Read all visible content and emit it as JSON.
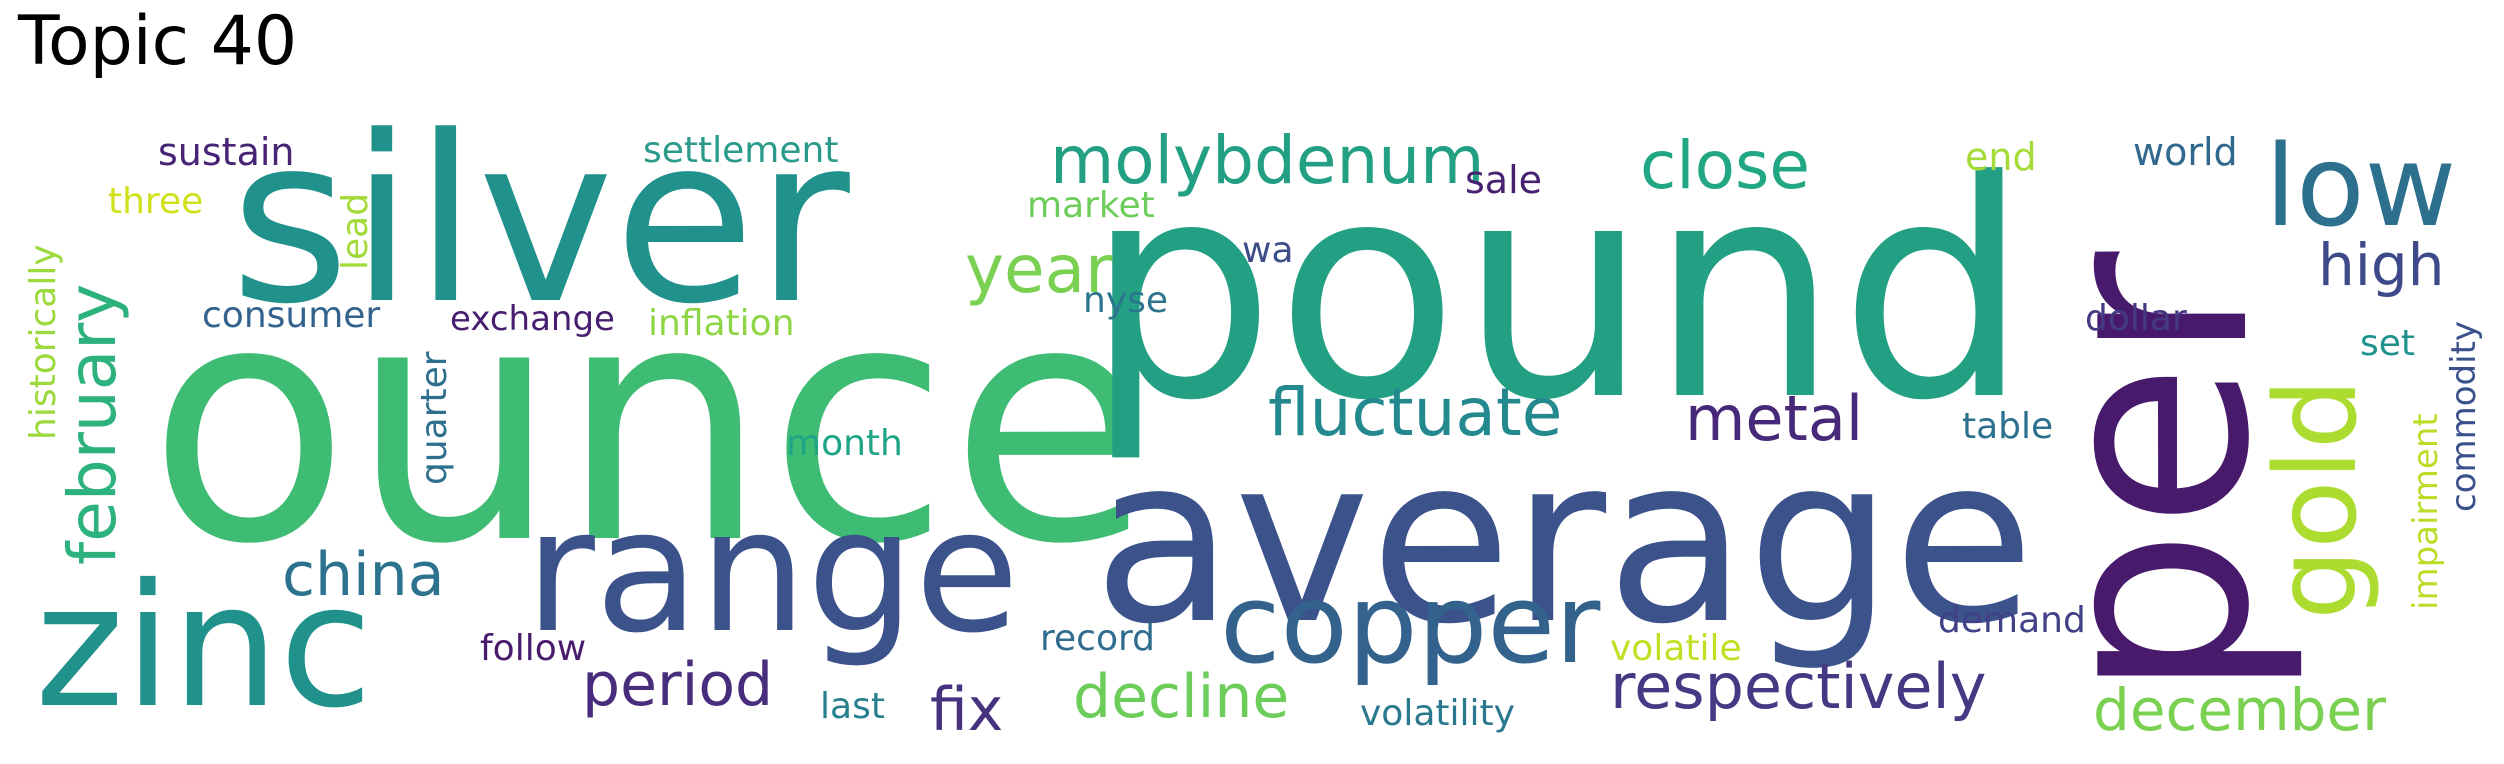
{
  "title": "Topic 40",
  "words": [
    {
      "text": "ounce",
      "color": "#3fbc73"
    },
    {
      "text": "pound",
      "color": "#23a083"
    },
    {
      "text": "per",
      "color": "#481a6c"
    },
    {
      "text": "average",
      "color": "#3b528b"
    },
    {
      "text": "silver",
      "color": "#21918c"
    },
    {
      "text": "range",
      "color": "#3b528b"
    },
    {
      "text": "zinc",
      "color": "#21918c"
    },
    {
      "text": "copper",
      "color": "#33638d"
    },
    {
      "text": "low",
      "color": "#2d708e"
    },
    {
      "text": "gold",
      "color": "#addc30"
    },
    {
      "text": "molybdenum",
      "color": "#23a083"
    },
    {
      "text": "close",
      "color": "#22a785"
    },
    {
      "text": "year",
      "color": "#7ad151"
    },
    {
      "text": "fluctuate",
      "color": "#23898e"
    },
    {
      "text": "metal",
      "color": "#482878"
    },
    {
      "text": "high",
      "color": "#3e4989"
    },
    {
      "text": "february",
      "color": "#2db27d"
    },
    {
      "text": "china",
      "color": "#2c728e"
    },
    {
      "text": "respectively",
      "color": "#443983"
    },
    {
      "text": "period",
      "color": "#472d7b"
    },
    {
      "text": "decline",
      "color": "#6ccd5a"
    },
    {
      "text": "december",
      "color": "#7ad151"
    },
    {
      "text": "fix",
      "color": "#46327e"
    },
    {
      "text": "sustain",
      "color": "#482475"
    },
    {
      "text": "settlement",
      "color": "#2a9a8a"
    },
    {
      "text": "sale",
      "color": "#482071"
    },
    {
      "text": "end",
      "color": "#a5db36"
    },
    {
      "text": "world",
      "color": "#31688e"
    },
    {
      "text": "three",
      "color": "#d0e11c"
    },
    {
      "text": "market",
      "color": "#6ccd5a"
    },
    {
      "text": "lead",
      "color": "#a2da37"
    },
    {
      "text": "wa",
      "color": "#3e4c8a"
    },
    {
      "text": "nyse",
      "color": "#2b758e"
    },
    {
      "text": "consumer",
      "color": "#33638d"
    },
    {
      "text": "exchange",
      "color": "#481f70"
    },
    {
      "text": "inflation",
      "color": "#8ed645"
    },
    {
      "text": "dollar",
      "color": "#443a83"
    },
    {
      "text": "set",
      "color": "#20928c"
    },
    {
      "text": "historically",
      "color": "#9bd93c"
    },
    {
      "text": "quarter",
      "color": "#2e6f8e"
    },
    {
      "text": "month",
      "color": "#20a486"
    },
    {
      "text": "table",
      "color": "#2d708e"
    },
    {
      "text": "impairment",
      "color": "#bade28"
    },
    {
      "text": "commodity",
      "color": "#3b518b"
    },
    {
      "text": "follow",
      "color": "#481b6d"
    },
    {
      "text": "record",
      "color": "#2f6c8e"
    },
    {
      "text": "volatile",
      "color": "#c2df23"
    },
    {
      "text": "demand",
      "color": "#424086"
    },
    {
      "text": "last",
      "color": "#27808e"
    },
    {
      "text": "volatility",
      "color": "#2a788e"
    }
  ]
}
